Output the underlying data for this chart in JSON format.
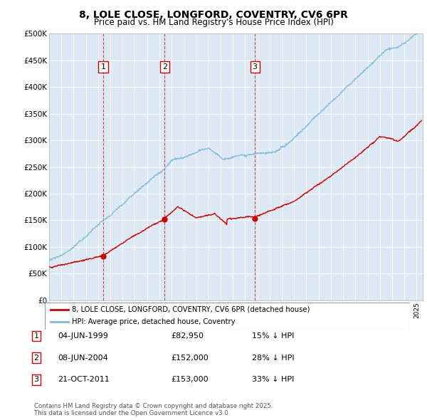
{
  "title": "8, LOLE CLOSE, LONGFORD, COVENTRY, CV6 6PR",
  "subtitle": "Price paid vs. HM Land Registry's House Price Index (HPI)",
  "ylabel_ticks": [
    "£0",
    "£50K",
    "£100K",
    "£150K",
    "£200K",
    "£250K",
    "£300K",
    "£350K",
    "£400K",
    "£450K",
    "£500K"
  ],
  "ytick_values": [
    0,
    50000,
    100000,
    150000,
    200000,
    250000,
    300000,
    350000,
    400000,
    450000,
    500000
  ],
  "xmin": 1995.0,
  "xmax": 2025.5,
  "ymin": 0,
  "ymax": 500000,
  "plot_bg": "#dce9f5",
  "grid_color": "#ffffff",
  "sale_markers": [
    {
      "year": 1999.42,
      "price": 82950,
      "label": "1"
    },
    {
      "year": 2004.43,
      "price": 152000,
      "label": "2"
    },
    {
      "year": 2011.8,
      "price": 153000,
      "label": "3"
    }
  ],
  "legend_entries": [
    {
      "label": "8, LOLE CLOSE, LONGFORD, COVENTRY, CV6 6PR (detached house)",
      "color": "#cc0000"
    },
    {
      "label": "HPI: Average price, detached house, Coventry",
      "color": "#7ab8d9"
    }
  ],
  "table_rows": [
    {
      "num": "1",
      "date": "04-JUN-1999",
      "price": "£82,950",
      "pct": "15% ↓ HPI"
    },
    {
      "num": "2",
      "date": "08-JUN-2004",
      "price": "£152,000",
      "pct": "28% ↓ HPI"
    },
    {
      "num": "3",
      "date": "21-OCT-2011",
      "price": "£153,000",
      "pct": "33% ↓ HPI"
    }
  ],
  "footnote": "Contains HM Land Registry data © Crown copyright and database right 2025.\nThis data is licensed under the Open Government Licence v3.0.",
  "red_line_color": "#cc0000",
  "blue_line_color": "#7ab8d9",
  "vline_color": "#cc0000"
}
